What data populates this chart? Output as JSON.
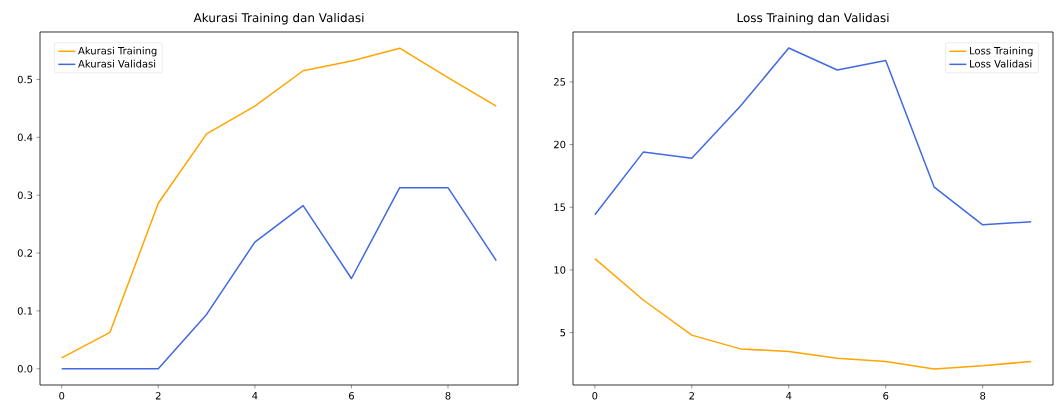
{
  "chart_data": [
    {
      "type": "line",
      "title": "Akurasi Training dan Validasi",
      "x": [
        0,
        1,
        2,
        3,
        4,
        5,
        6,
        7,
        8,
        9
      ],
      "xlim": [
        -0.45,
        9.45
      ],
      "ylim": [
        -0.028,
        0.582
      ],
      "xticks": [
        0,
        2,
        4,
        6,
        8
      ],
      "yticks": [
        {
          "value": 0,
          "label": "0.0"
        },
        {
          "value": 0.1,
          "label": "0.1"
        },
        {
          "value": 0.2,
          "label": "0.2"
        },
        {
          "value": 0.3,
          "label": "0.3"
        },
        {
          "value": 0.4,
          "label": "0.4"
        },
        {
          "value": 0.5,
          "label": "0.5"
        }
      ],
      "legend": "top left",
      "marker": "none",
      "line_style": "solid",
      "series": [
        {
          "name": "Akurasi Training",
          "color": "#ffa500",
          "values": [
            0.019,
            0.063,
            0.286,
            0.406,
            0.454,
            0.515,
            0.532,
            0.554,
            0.503,
            0.454
          ]
        },
        {
          "name": "Akurasi Validasi",
          "color": "#4169e1",
          "values": [
            0,
            0,
            0,
            0.094,
            0.219,
            0.282,
            0.156,
            0.313,
            0.313,
            0.187
          ]
        }
      ]
    },
    {
      "type": "line",
      "title": "Loss Training dan Validasi",
      "x": [
        0,
        1,
        2,
        3,
        4,
        5,
        6,
        7,
        8,
        9
      ],
      "xlim": [
        -0.45,
        9.45
      ],
      "ylim": [
        0.82,
        28.98
      ],
      "xticks": [
        0,
        2,
        4,
        6,
        8
      ],
      "yticks": [
        5,
        10,
        15,
        20,
        25
      ],
      "legend": "top right",
      "marker": "none",
      "line_style": "solid",
      "series": [
        {
          "name": "Loss Training",
          "color": "#ffa500",
          "values": [
            10.9,
            7.6,
            4.8,
            3.7,
            3.5,
            2.95,
            2.7,
            2.1,
            2.35,
            2.7
          ]
        },
        {
          "name": "Loss Validasi",
          "color": "#4169e1",
          "values": [
            14.4,
            19.4,
            18.9,
            23.05,
            27.7,
            25.95,
            26.7,
            16.6,
            13.6,
            13.85
          ]
        }
      ]
    }
  ]
}
